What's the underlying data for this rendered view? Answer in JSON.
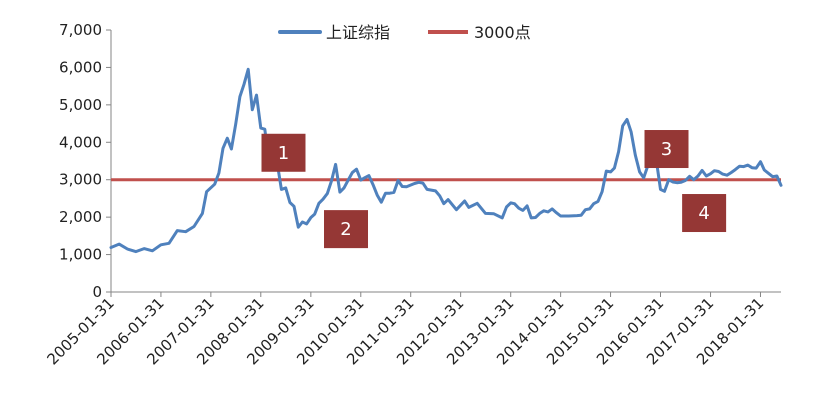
{
  "chart_data": {
    "type": "line",
    "title": "",
    "xlabel": "",
    "ylabel": "",
    "ylim": [
      0,
      7000
    ],
    "yticks": [
      0,
      1000,
      2000,
      3000,
      4000,
      5000,
      6000,
      7000
    ],
    "ytick_labels": [
      "0",
      "1,000",
      "2,000",
      "3,000",
      "4,000",
      "5,000",
      "6,000",
      "7,000"
    ],
    "xlim": [
      "2005-01-31",
      "2018-06-30"
    ],
    "xtick_labels": [
      "2005-01-31",
      "2006-01-31",
      "2007-01-31",
      "2008-01-31",
      "2009-01-31",
      "2010-01-31",
      "2011-01-31",
      "2012-01-31",
      "2013-01-31",
      "2014-01-31",
      "2015-01-31",
      "2016-01-31",
      "2017-01-31",
      "2018-01-31"
    ],
    "legend": {
      "placement": "top-center"
    },
    "grid": false,
    "series": [
      {
        "name": "上证综指",
        "color": "#4F81BD",
        "points": [
          [
            "2005-01-31",
            1190
          ],
          [
            "2005-03-31",
            1280
          ],
          [
            "2005-05-31",
            1150
          ],
          [
            "2005-07-31",
            1080
          ],
          [
            "2005-09-30",
            1160
          ],
          [
            "2005-11-30",
            1100
          ],
          [
            "2006-01-31",
            1260
          ],
          [
            "2006-03-31",
            1300
          ],
          [
            "2006-05-31",
            1640
          ],
          [
            "2006-07-31",
            1610
          ],
          [
            "2006-09-30",
            1750
          ],
          [
            "2006-11-30",
            2100
          ],
          [
            "2006-12-31",
            2680
          ],
          [
            "2007-02-28",
            2880
          ],
          [
            "2007-03-31",
            3180
          ],
          [
            "2007-04-30",
            3840
          ],
          [
            "2007-05-31",
            4110
          ],
          [
            "2007-06-30",
            3820
          ],
          [
            "2007-07-31",
            4470
          ],
          [
            "2007-08-31",
            5220
          ],
          [
            "2007-09-30",
            5550
          ],
          [
            "2007-10-31",
            5950
          ],
          [
            "2007-11-30",
            4870
          ],
          [
            "2007-12-31",
            5260
          ],
          [
            "2008-01-31",
            4380
          ],
          [
            "2008-02-29",
            4350
          ],
          [
            "2008-03-31",
            3470
          ],
          [
            "2008-04-30",
            3690
          ],
          [
            "2008-05-31",
            3430
          ],
          [
            "2008-06-30",
            2740
          ],
          [
            "2008-07-31",
            2780
          ],
          [
            "2008-08-31",
            2390
          ],
          [
            "2008-09-30",
            2290
          ],
          [
            "2008-10-31",
            1730
          ],
          [
            "2008-11-30",
            1870
          ],
          [
            "2008-12-31",
            1820
          ],
          [
            "2009-01-31",
            1990
          ],
          [
            "2009-02-28",
            2080
          ],
          [
            "2009-03-31",
            2370
          ],
          [
            "2009-04-30",
            2480
          ],
          [
            "2009-05-31",
            2630
          ],
          [
            "2009-06-30",
            2960
          ],
          [
            "2009-07-31",
            3410
          ],
          [
            "2009-08-31",
            2670
          ],
          [
            "2009-09-30",
            2780
          ],
          [
            "2009-10-31",
            2990
          ],
          [
            "2009-11-30",
            3190
          ],
          [
            "2009-12-31",
            3280
          ],
          [
            "2010-01-31",
            2990
          ],
          [
            "2010-02-28",
            3050
          ],
          [
            "2010-03-31",
            3110
          ],
          [
            "2010-04-30",
            2870
          ],
          [
            "2010-05-31",
            2590
          ],
          [
            "2010-06-30",
            2400
          ],
          [
            "2010-07-31",
            2640
          ],
          [
            "2010-08-31",
            2640
          ],
          [
            "2010-09-30",
            2660
          ],
          [
            "2010-10-31",
            2980
          ],
          [
            "2010-11-30",
            2820
          ],
          [
            "2010-12-31",
            2810
          ],
          [
            "2011-02-28",
            2900
          ],
          [
            "2011-03-31",
            2930
          ],
          [
            "2011-04-30",
            2910
          ],
          [
            "2011-05-31",
            2740
          ],
          [
            "2011-07-31",
            2700
          ],
          [
            "2011-08-31",
            2570
          ],
          [
            "2011-09-30",
            2360
          ],
          [
            "2011-10-31",
            2470
          ],
          [
            "2011-12-31",
            2200
          ],
          [
            "2012-02-29",
            2430
          ],
          [
            "2012-03-31",
            2260
          ],
          [
            "2012-05-31",
            2370
          ],
          [
            "2012-07-31",
            2100
          ],
          [
            "2012-09-30",
            2090
          ],
          [
            "2012-11-30",
            1980
          ],
          [
            "2012-12-31",
            2270
          ],
          [
            "2013-01-31",
            2380
          ],
          [
            "2013-02-28",
            2360
          ],
          [
            "2013-03-31",
            2240
          ],
          [
            "2013-04-30",
            2180
          ],
          [
            "2013-05-31",
            2300
          ],
          [
            "2013-06-30",
            1980
          ],
          [
            "2013-07-31",
            1990
          ],
          [
            "2013-08-31",
            2100
          ],
          [
            "2013-09-30",
            2170
          ],
          [
            "2013-10-31",
            2140
          ],
          [
            "2013-11-30",
            2220
          ],
          [
            "2013-12-31",
            2120
          ],
          [
            "2014-01-31",
            2030
          ],
          [
            "2014-03-31",
            2030
          ],
          [
            "2014-05-31",
            2040
          ],
          [
            "2014-06-30",
            2050
          ],
          [
            "2014-07-31",
            2200
          ],
          [
            "2014-08-31",
            2220
          ],
          [
            "2014-09-30",
            2360
          ],
          [
            "2014-10-31",
            2420
          ],
          [
            "2014-11-30",
            2680
          ],
          [
            "2014-12-31",
            3230
          ],
          [
            "2015-01-31",
            3210
          ],
          [
            "2015-02-28",
            3310
          ],
          [
            "2015-03-31",
            3750
          ],
          [
            "2015-04-30",
            4440
          ],
          [
            "2015-05-31",
            4610
          ],
          [
            "2015-06-30",
            4280
          ],
          [
            "2015-07-31",
            3660
          ],
          [
            "2015-08-31",
            3210
          ],
          [
            "2015-09-30",
            3050
          ],
          [
            "2015-10-31",
            3380
          ],
          [
            "2015-11-30",
            3440
          ],
          [
            "2015-12-31",
            3540
          ],
          [
            "2016-01-31",
            2740
          ],
          [
            "2016-02-29",
            2690
          ],
          [
            "2016-03-31",
            3000
          ],
          [
            "2016-04-30",
            2940
          ],
          [
            "2016-05-31",
            2920
          ],
          [
            "2016-06-30",
            2930
          ],
          [
            "2016-07-31",
            2980
          ],
          [
            "2016-08-31",
            3090
          ],
          [
            "2016-09-30",
            3000
          ],
          [
            "2016-10-31",
            3100
          ],
          [
            "2016-11-30",
            3250
          ],
          [
            "2016-12-31",
            3100
          ],
          [
            "2017-01-31",
            3160
          ],
          [
            "2017-02-28",
            3240
          ],
          [
            "2017-03-31",
            3220
          ],
          [
            "2017-04-30",
            3150
          ],
          [
            "2017-05-31",
            3120
          ],
          [
            "2017-06-30",
            3190
          ],
          [
            "2017-07-31",
            3270
          ],
          [
            "2017-08-31",
            3360
          ],
          [
            "2017-09-30",
            3350
          ],
          [
            "2017-10-31",
            3390
          ],
          [
            "2017-11-30",
            3320
          ],
          [
            "2017-12-31",
            3310
          ],
          [
            "2018-01-31",
            3480
          ],
          [
            "2018-02-28",
            3260
          ],
          [
            "2018-03-31",
            3170
          ],
          [
            "2018-04-30",
            3080
          ],
          [
            "2018-05-31",
            3100
          ],
          [
            "2018-06-30",
            2850
          ]
        ]
      },
      {
        "name": "3000点",
        "color": "#C0504D",
        "constant": 3000
      }
    ],
    "annotations": [
      {
        "label": "1",
        "x": "2008-07-15",
        "y": 3720,
        "color": "#953735"
      },
      {
        "label": "2",
        "x": "2009-10-15",
        "y": 1680,
        "color": "#953735"
      },
      {
        "label": "3",
        "x": "2016-03-15",
        "y": 3820,
        "color": "#953735"
      },
      {
        "label": "4",
        "x": "2016-12-15",
        "y": 2110,
        "color": "#953735"
      }
    ]
  }
}
